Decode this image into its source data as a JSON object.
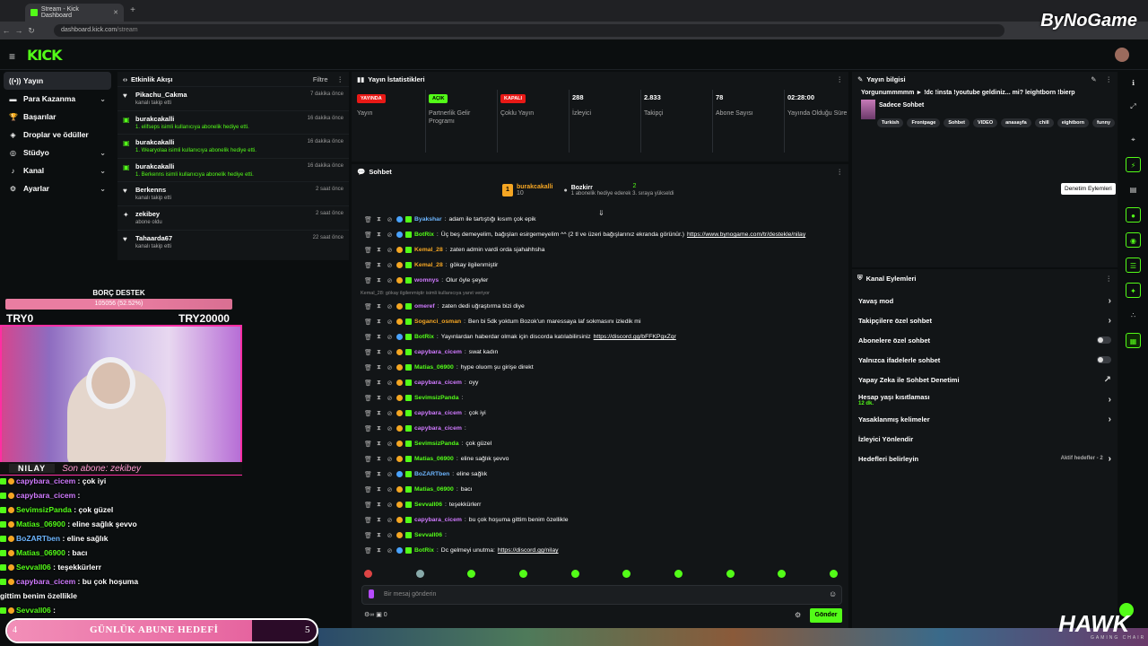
{
  "browser": {
    "tab_title": "Stream - Kick Dashboard",
    "url_host": "dashboard.kick.com",
    "url_path": "/stream",
    "watermark": "ByNoGame"
  },
  "brand": {
    "logo": "KICK"
  },
  "leftnav": [
    {
      "label": "Yayın",
      "icon": "broadcast-icon",
      "active": true
    },
    {
      "label": "Para Kazanma",
      "icon": "money-icon",
      "chevron": true
    },
    {
      "label": "Başarılar",
      "icon": "trophy-icon"
    },
    {
      "label": "Droplar ve ödüller",
      "icon": "gift-icon"
    },
    {
      "label": "Stüdyo",
      "icon": "studio-icon",
      "chevron": true
    },
    {
      "label": "Kanal",
      "icon": "channel-icon",
      "chevron": true
    },
    {
      "label": "Ayarlar",
      "icon": "settings-icon",
      "chevron": true
    }
  ],
  "activity": {
    "title": "Etkinlik Akışı",
    "filter": "Filtre",
    "items": [
      {
        "name": "Pikachu_Cakma",
        "sub": "kanalı takip etti",
        "time": "7 dakika önce",
        "kind": "follow"
      },
      {
        "name": "burakcakalli",
        "sub": "1. elifseps isimli kullanıcıya abonelik hediye etti.",
        "time": "16 dakika önce",
        "kind": "gift"
      },
      {
        "name": "burakcakalli",
        "sub": "1. Wearyolaa isimli kullanıcıya abonelik hediye etti.",
        "time": "16 dakika önce",
        "kind": "gift"
      },
      {
        "name": "burakcakalli",
        "sub": "1. Berkenns isimli kullanıcıya abonelik hediye etti.",
        "time": "16 dakika önce",
        "kind": "gift"
      },
      {
        "name": "Berkenns",
        "sub": "kanalı takip etti",
        "time": "2 saat önce",
        "kind": "follow"
      },
      {
        "name": "zekibey",
        "sub": "abone oldu",
        "time": "2 saat önce",
        "kind": "sub"
      },
      {
        "name": "Tahaarda67",
        "sub": "kanalı takip etti",
        "time": "22 saat önce",
        "kind": "follow"
      }
    ]
  },
  "overlay": {
    "debt_title": "BORÇ DESTEK",
    "debt_progress": "105056 (52.52%)",
    "debt_fraction": 0.5252,
    "debt_min": "TRY0",
    "debt_max": "TRY20000",
    "streamer": "NILAY",
    "last_sub": "Son abone: zekibey",
    "chat": [
      {
        "user": "capybara_cicem",
        "text": ": çok iyi",
        "color": "pink"
      },
      {
        "user": "capybara_cicem",
        "text": ":",
        "color": "pink"
      },
      {
        "user": "SevimsizPanda",
        "text": ": çok güzel",
        "color": "green"
      },
      {
        "user": "Matias_06900",
        "text": ": eline sağlık şevvo",
        "color": "green"
      },
      {
        "user": "BoZARTben",
        "text": ": eline sağlık",
        "color": "blue"
      },
      {
        "user": "Matias_06900",
        "text": ": bacı",
        "color": "green"
      },
      {
        "user": "Sevvall06",
        "text": ": teşekkürlerr",
        "color": "green"
      },
      {
        "user": "capybara_cicem",
        "text": ": bu çok hoşuma",
        "color": "pink"
      },
      {
        "user": "",
        "text": "gittim benim özellikle",
        "color": "none"
      },
      {
        "user": "Sevvall06",
        "text": ":",
        "color": "green"
      }
    ],
    "goal_left": "4",
    "goal_title": "GÜNLÜK ABUNE HEDEFİ",
    "goal_right": "5",
    "goal_fraction": 0.8
  },
  "stats": {
    "title": "Yayın İstatistikleri",
    "items": [
      {
        "pill": "YAYINDA",
        "pill_color": "red",
        "label": "Yayın"
      },
      {
        "pill": "AÇIK",
        "pill_color": "green",
        "label": "Partnerlik Gelir Programı"
      },
      {
        "pill": "KAPALI",
        "pill_color": "red",
        "label": "Çoklu Yayın"
      },
      {
        "value": "288",
        "label": "İzleyici"
      },
      {
        "value": "2.833",
        "label": "Takipçi"
      },
      {
        "value": "78",
        "label": "Abone Sayısı"
      },
      {
        "value": "02:28:00",
        "label": "Yayında Olduğu Süre"
      }
    ]
  },
  "chat": {
    "title": "Sohbet",
    "pinned_user": "burakcakalli",
    "pinned_count": "10",
    "pinned_target": "Bozkirr",
    "pinned_target_count": "2",
    "pinned_text": "1 abonelik hediye ederek 3. sıraya yükseldi",
    "messages": [
      {
        "user": "Byakshar",
        "color": "#6db6ff",
        "text": "adam ile tartıştığı kısım çok epik"
      },
      {
        "user": "BotRix",
        "color": "#53fc18",
        "text": "Üç beş demeyelim, bağışları esirgemeyelim ^^ (2 tl ve üzeri bağışlarınız ekranda görünür.)",
        "link": "https://www.bynogame.com/tr/destekle/nilay"
      },
      {
        "user": "Kemal_28",
        "color": "#f5a623",
        "text": "zaten admin vardi orda sjahahhsha"
      },
      {
        "user": "Kemal_28",
        "color": "#f5a623",
        "text": "gökay ilgilenmiştir"
      },
      {
        "user": "womnys",
        "color": "#d07aff",
        "text": "Olur öyle şeyler"
      },
      {
        "reply": "Kemal_28: gökay ilgilenmiştir isimli kullanıcıya yanıt veriyor"
      },
      {
        "user": "omeref",
        "color": "#d07aff",
        "text": "zaten dedi uğraştırma bizi diye"
      },
      {
        "user": "Soganci_osman",
        "color": "#f5a623",
        "text": "Ben bi 5dk yoktum Bozok'un maressaya laf sokmasını izledik mi"
      },
      {
        "user": "BotRix",
        "color": "#53fc18",
        "text": "Yayınlardan haberdar olmak için discorda katılabilirsiniz",
        "link": "https://discord.gg/bFFKPgxZqr"
      },
      {
        "user": "capybara_cicem",
        "color": "#d07aff",
        "text": "swat kadın"
      },
      {
        "user": "Matias_06900",
        "color": "#53fc18",
        "text": "hype oluom şu girişe direkt"
      },
      {
        "user": "capybara_cicem",
        "color": "#d07aff",
        "text": "oyy"
      },
      {
        "user": "SevimsizPanda",
        "color": "#53fc18",
        "text": ""
      },
      {
        "user": "capybara_cicem",
        "color": "#d07aff",
        "text": "çok iyi"
      },
      {
        "user": "capybara_cicem",
        "color": "#d07aff",
        "text": ""
      },
      {
        "user": "SevimsizPanda",
        "color": "#53fc18",
        "text": "çok güzel"
      },
      {
        "user": "Matias_06900",
        "color": "#53fc18",
        "text": "eline sağlık şevvo"
      },
      {
        "user": "BoZARTben",
        "color": "#6db6ff",
        "text": "eline sağlık"
      },
      {
        "user": "Matias_06900",
        "color": "#53fc18",
        "text": "bacı"
      },
      {
        "user": "Sevvall06",
        "color": "#53fc18",
        "text": "teşekkürlerr"
      },
      {
        "user": "capybara_cicem",
        "color": "#d07aff",
        "text": "bu çok hoşuma gittim benim özellikle"
      },
      {
        "user": "Sevvall06",
        "color": "#53fc18",
        "text": ""
      },
      {
        "user": "BotRix",
        "color": "#53fc18",
        "text": "Dc gelmeyi unutma:",
        "link": "https://discord.gg/nilay"
      }
    ],
    "input_placeholder": "Bir mesaj gönderin",
    "send": "Gönder",
    "points": "0"
  },
  "info": {
    "title": "Yayın bilgisi",
    "stream_title": "Yorgunummmmm ► !dc !insta !youtube geldiniz... mi? leightborn !bierp",
    "category": "Sadece Sohbet",
    "tags": [
      "Turkish",
      "Frontpage",
      "Sohbet",
      "VIDEO",
      "anasayfa",
      "chill",
      "eightborn",
      "funny"
    ]
  },
  "mod": {
    "title": "Kanal Eylemleri",
    "items": [
      {
        "label": "Yavaş mod",
        "type": "chevron"
      },
      {
        "label": "Takipçilere özel sohbet",
        "type": "chevron"
      },
      {
        "label": "Abonelere özel sohbet",
        "type": "toggle"
      },
      {
        "label": "Yalnızca ifadelerle sohbet",
        "type": "toggle"
      },
      {
        "label": "Yapay Zeka ile Sohbet Denetimi",
        "type": "link"
      },
      {
        "label": "Hesap yaşı kısıtlaması",
        "sub": "12 dk.",
        "type": "chevron"
      },
      {
        "label": "Yasaklanmış kelimeler",
        "type": "chevron"
      },
      {
        "label": "İzleyici Yönlendir",
        "type": "none"
      },
      {
        "label": "Hedefleri belirleyin",
        "right": "Aktif hedefler - 2",
        "type": "chevron"
      }
    ]
  },
  "rail": {
    "tooltip": "Denetim Eylemleri"
  },
  "hawk": {
    "logo": "HAWK",
    "sub": "GAMING CHAIR"
  },
  "colors": {
    "accent": "#53fc18",
    "live_red": "#e91916",
    "panel": "#121517",
    "bg": "#0b0e0f"
  }
}
